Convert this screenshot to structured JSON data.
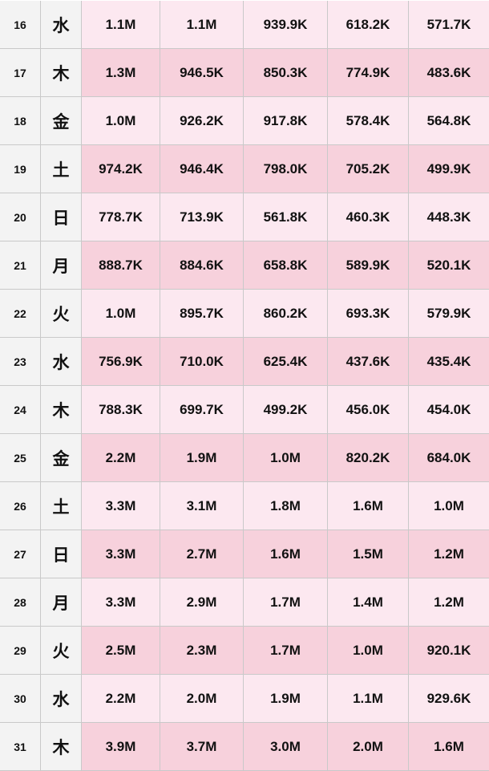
{
  "colors": {
    "label_bg": "#f3f3f3",
    "light_bg": "#fce8f0",
    "dark_bg": "#f7d1dc",
    "grid_line": "#c9c9c9"
  },
  "rows": [
    {
      "day": "16",
      "weekday": "水",
      "values": [
        "1.1M",
        "1.1M",
        "939.9K",
        "618.2K",
        "571.7K"
      ]
    },
    {
      "day": "17",
      "weekday": "木",
      "values": [
        "1.3M",
        "946.5K",
        "850.3K",
        "774.9K",
        "483.6K"
      ]
    },
    {
      "day": "18",
      "weekday": "金",
      "values": [
        "1.0M",
        "926.2K",
        "917.8K",
        "578.4K",
        "564.8K"
      ]
    },
    {
      "day": "19",
      "weekday": "土",
      "values": [
        "974.2K",
        "946.4K",
        "798.0K",
        "705.2K",
        "499.9K"
      ]
    },
    {
      "day": "20",
      "weekday": "日",
      "values": [
        "778.7K",
        "713.9K",
        "561.8K",
        "460.3K",
        "448.3K"
      ]
    },
    {
      "day": "21",
      "weekday": "月",
      "values": [
        "888.7K",
        "884.6K",
        "658.8K",
        "589.9K",
        "520.1K"
      ]
    },
    {
      "day": "22",
      "weekday": "火",
      "values": [
        "1.0M",
        "895.7K",
        "860.2K",
        "693.3K",
        "579.9K"
      ]
    },
    {
      "day": "23",
      "weekday": "水",
      "values": [
        "756.9K",
        "710.0K",
        "625.4K",
        "437.6K",
        "435.4K"
      ]
    },
    {
      "day": "24",
      "weekday": "木",
      "values": [
        "788.3K",
        "699.7K",
        "499.2K",
        "456.0K",
        "454.0K"
      ]
    },
    {
      "day": "25",
      "weekday": "金",
      "values": [
        "2.2M",
        "1.9M",
        "1.0M",
        "820.2K",
        "684.0K"
      ]
    },
    {
      "day": "26",
      "weekday": "土",
      "values": [
        "3.3M",
        "3.1M",
        "1.8M",
        "1.6M",
        "1.0M"
      ]
    },
    {
      "day": "27",
      "weekday": "日",
      "values": [
        "3.3M",
        "2.7M",
        "1.6M",
        "1.5M",
        "1.2M"
      ]
    },
    {
      "day": "28",
      "weekday": "月",
      "values": [
        "3.3M",
        "2.9M",
        "1.7M",
        "1.4M",
        "1.2M"
      ]
    },
    {
      "day": "29",
      "weekday": "火",
      "values": [
        "2.5M",
        "2.3M",
        "1.7M",
        "1.0M",
        "920.1K"
      ]
    },
    {
      "day": "30",
      "weekday": "水",
      "values": [
        "2.2M",
        "2.0M",
        "1.9M",
        "1.1M",
        "929.6K"
      ]
    },
    {
      "day": "31",
      "weekday": "木",
      "values": [
        "3.9M",
        "3.7M",
        "3.0M",
        "2.0M",
        "1.6M"
      ]
    }
  ]
}
